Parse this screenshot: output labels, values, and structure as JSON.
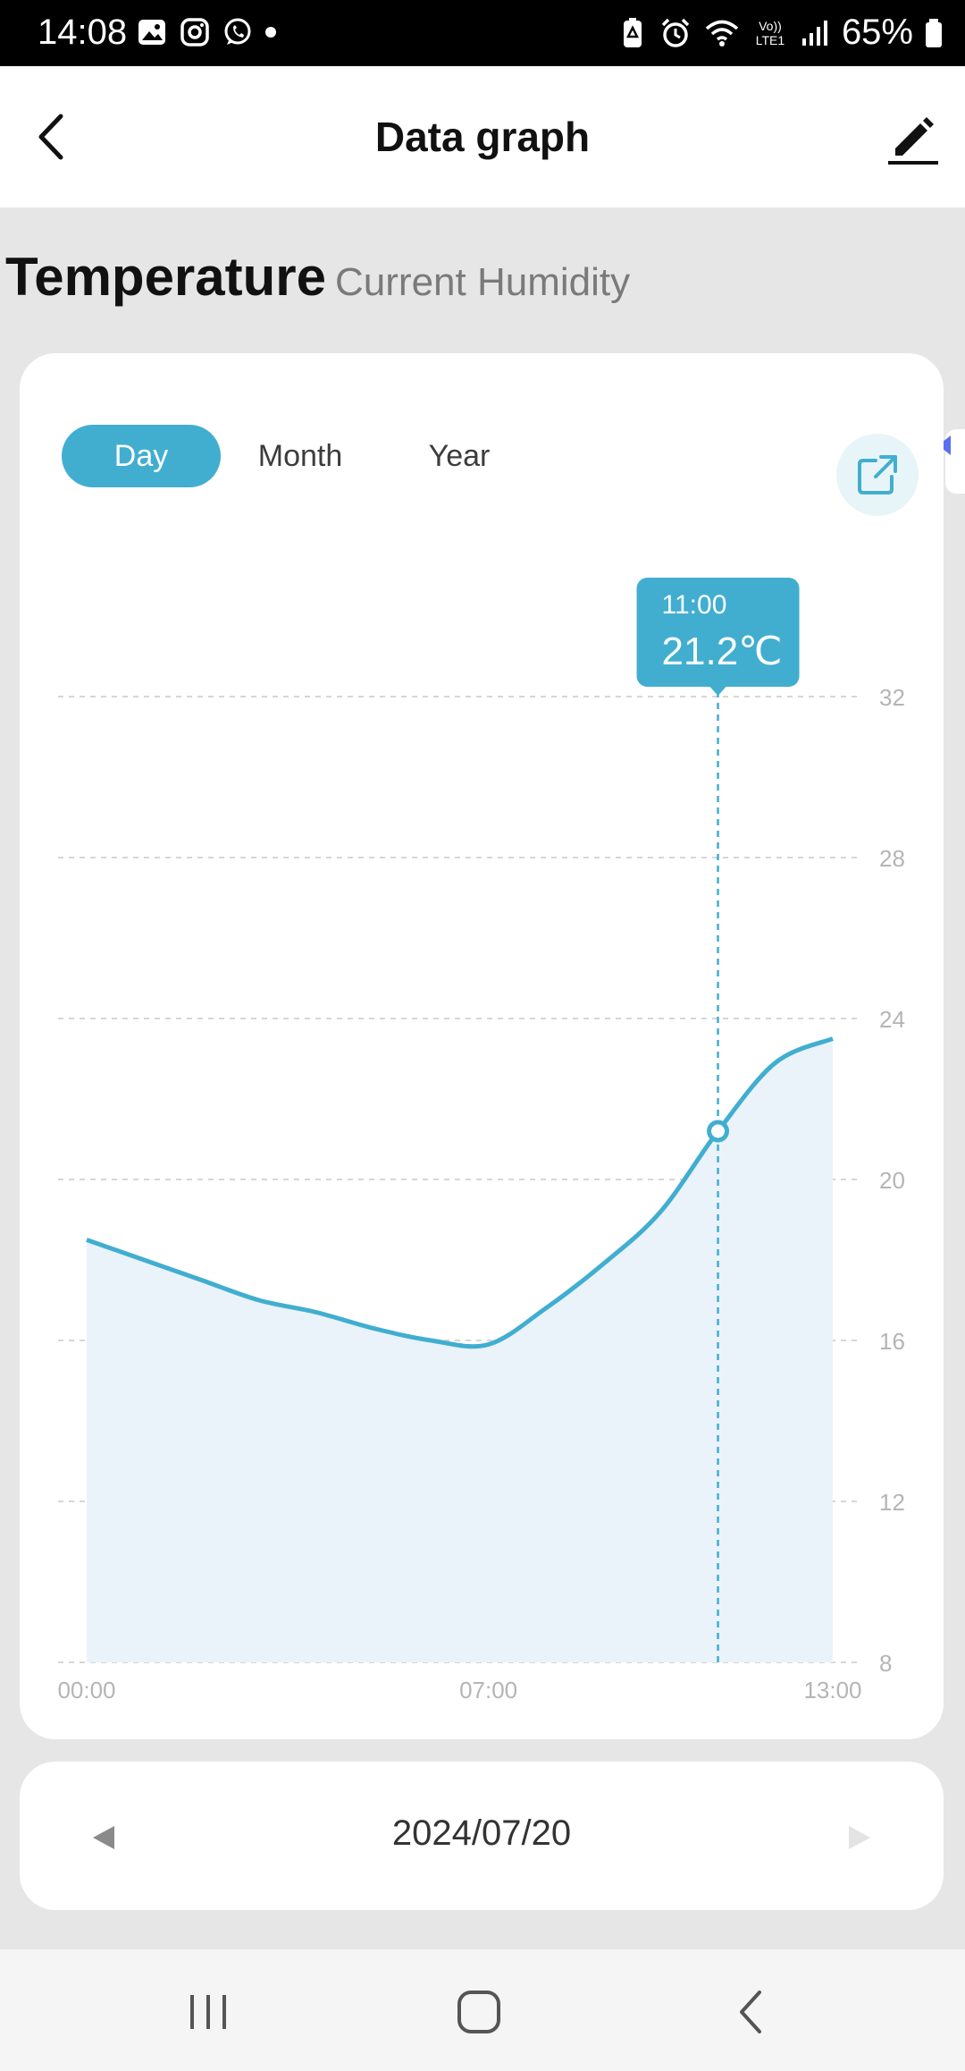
{
  "status_bar": {
    "time": "14:08",
    "left_icons": [
      "gallery-icon",
      "instagram-icon",
      "whatsapp-icon",
      "dot-icon"
    ],
    "right_icons": [
      "battery-saver-icon",
      "alarm-icon",
      "wifi-icon",
      "volte-icon",
      "signal-icon"
    ],
    "volte_text": "Vo)) LTE1",
    "battery_percent": "65%"
  },
  "header": {
    "title": "Data graph",
    "back_icon": "back-arrow-icon",
    "edit_icon": "edit-pencil-icon"
  },
  "data_tabs": {
    "active": "Temperature",
    "inactive": "Current Humidity"
  },
  "range_tabs": [
    {
      "label": "Day",
      "active": true
    },
    {
      "label": "Month",
      "active": false
    },
    {
      "label": "Year",
      "active": false
    }
  ],
  "export_icon": "export-share-icon",
  "tooltip": {
    "time": "11:00",
    "value": "21.2℃"
  },
  "chart_data": {
    "type": "area",
    "x_labels": [
      "00:00",
      "07:00",
      "13:00"
    ],
    "y_ticks": [
      8,
      12,
      16,
      20,
      24,
      28,
      32
    ],
    "ylim": [
      8,
      32
    ],
    "xlim": [
      0,
      13
    ],
    "grid": true,
    "points": [
      {
        "x": 0,
        "y": 18.5
      },
      {
        "x": 1,
        "y": 18.0
      },
      {
        "x": 2,
        "y": 17.5
      },
      {
        "x": 3,
        "y": 17.0
      },
      {
        "x": 4,
        "y": 16.7
      },
      {
        "x": 5,
        "y": 16.3
      },
      {
        "x": 6,
        "y": 16.0
      },
      {
        "x": 7,
        "y": 15.9
      },
      {
        "x": 8,
        "y": 16.8
      },
      {
        "x": 9,
        "y": 17.9
      },
      {
        "x": 10,
        "y": 19.2
      },
      {
        "x": 11,
        "y": 21.2
      },
      {
        "x": 12,
        "y": 22.9
      },
      {
        "x": 13,
        "y": 23.5
      }
    ],
    "highlight": {
      "x": 11,
      "y": 21.2
    },
    "line_color": "#41aed0",
    "fill_color": "#eaf3fa"
  },
  "date_nav": {
    "date": "2024/07/20",
    "prev_icon": "triangle-left-icon",
    "next_icon": "triangle-right-icon"
  },
  "nav_bar": {
    "icons": [
      "recents-icon",
      "home-icon",
      "back-icon"
    ]
  },
  "colors": {
    "accent": "#41aed0",
    "background": "#e6e6e6"
  }
}
